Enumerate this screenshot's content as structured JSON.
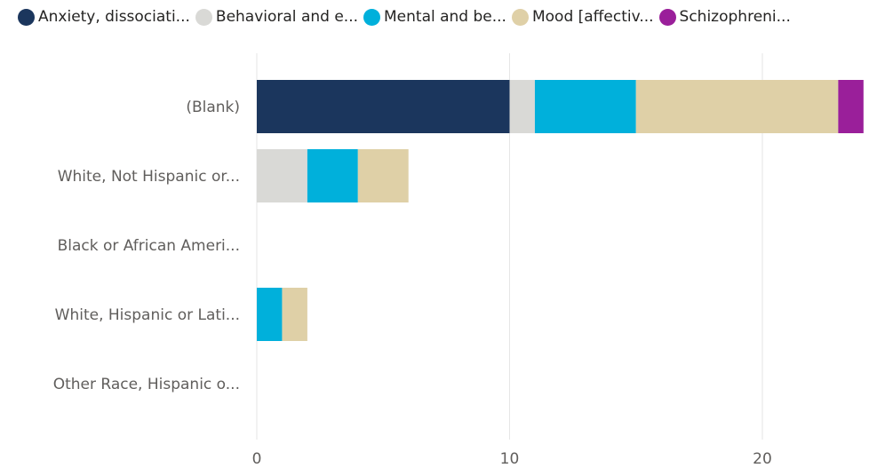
{
  "chart_data": {
    "type": "bar",
    "orientation": "horizontal",
    "stacked": true,
    "categories": [
      "(Blank)",
      "White, Not Hispanic or...",
      "Black or African Ameri...",
      "White, Hispanic or Lati...",
      "Other Race, Hispanic o..."
    ],
    "series": [
      {
        "name": "Anxiety, dissociati...",
        "color": "#1b365d",
        "values": [
          10,
          0,
          0,
          0,
          0
        ]
      },
      {
        "name": "Behavioral and e...",
        "color": "#d9d9d6",
        "values": [
          1,
          2,
          0,
          0,
          0
        ]
      },
      {
        "name": "Mental and be...",
        "color": "#00b0db",
        "values": [
          4,
          2,
          0,
          1,
          0
        ]
      },
      {
        "name": "Mood [affectiv...",
        "color": "#dfd0a7",
        "values": [
          8,
          2,
          0,
          1,
          0
        ]
      },
      {
        "name": "Schizophreni...",
        "color": "#9a1f9a",
        "values": [
          1,
          0,
          0,
          0,
          0
        ]
      }
    ],
    "xlim": [
      0,
      24
    ],
    "x_ticks": [
      0,
      10,
      20
    ],
    "x_tick_labels": [
      "0",
      "10",
      "20"
    ],
    "grid": true,
    "legend": "top-left"
  }
}
